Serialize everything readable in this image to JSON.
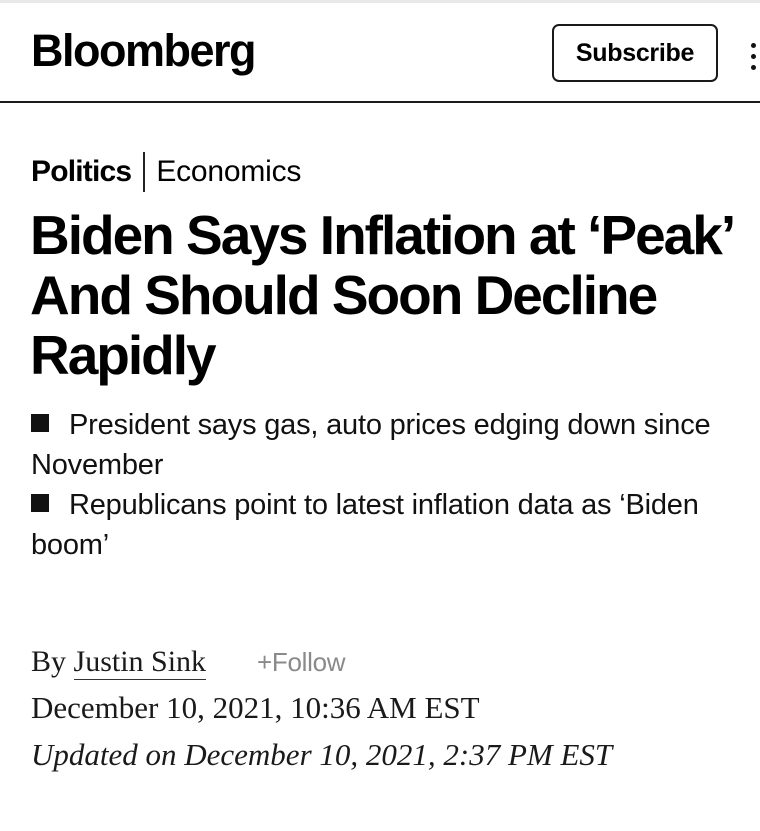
{
  "header": {
    "logo_text": "Bloomberg",
    "subscribe_label": "Subscribe",
    "menu_icon": "vertical-dots-icon"
  },
  "breadcrumb": {
    "primary": "Politics",
    "secondary": "Economics"
  },
  "article": {
    "headline": "Biden Says Inflation at ‘Peak’ And Should Soon Decline Rapidly",
    "summary": [
      "President says gas, auto prices edging down since November",
      "Republicans point to latest inflation data as ‘Biden boom’"
    ],
    "byline_prefix": "By",
    "author": "Justin Sink",
    "follow_label": "+Follow",
    "published": "December 10, 2021, 10:36 AM EST",
    "updated": "Updated on December 10, 2021, 2:37 PM EST"
  },
  "colors": {
    "text": "#000000",
    "muted": "#8a8a8a",
    "rule": "#1a1a1a"
  }
}
